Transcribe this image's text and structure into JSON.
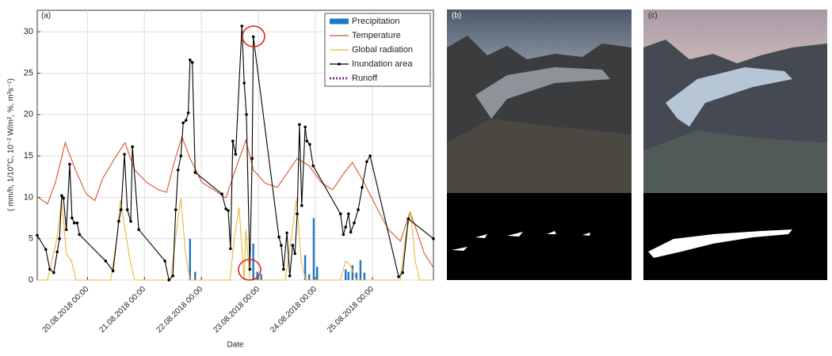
{
  "chart_data": {
    "type": "line",
    "panel_label": "(a)",
    "xlabel": "Date",
    "ylabel": "( mm/h, 1/10°C, 10⁻² W/m², %, m³s⁻¹)",
    "xlim": [
      19.12,
      26.07
    ],
    "ylim": [
      0,
      32.6
    ],
    "xticks": [
      {
        "value": 20,
        "label": "20.08.2018 00:00"
      },
      {
        "value": 21,
        "label": "21.08.2018 00:00"
      },
      {
        "value": 22,
        "label": "22.08.2018 00:00"
      },
      {
        "value": 23,
        "label": "23.08.2018 00:00"
      },
      {
        "value": 24,
        "label": "24.08.2018 00:00"
      },
      {
        "value": 25,
        "label": "25.08.2018 00:00"
      }
    ],
    "yticks": [
      0,
      5,
      10,
      15,
      20,
      25,
      30
    ],
    "grid": true,
    "legend": "upper right",
    "series": [
      {
        "name": "Precipitation",
        "color": "#1f77c8",
        "style": "bar",
        "x": [
          21.8,
          21.89,
          22.91,
          22.98,
          23.05,
          23.82,
          23.89,
          23.97,
          24.03,
          24.53,
          24.58,
          24.65,
          24.72,
          24.79,
          24.86
        ],
        "values": [
          5.0,
          1.0,
          4.4,
          1.0,
          0.7,
          3.0,
          0.7,
          7.5,
          1.6,
          1.3,
          1.0,
          1.8,
          0.9,
          2.4,
          0.9
        ]
      },
      {
        "name": "Temperature",
        "color": "#d9542b",
        "style": "line",
        "x": [
          19.12,
          19.3,
          19.44,
          19.61,
          19.79,
          19.98,
          20.13,
          20.27,
          20.48,
          20.66,
          20.83,
          21.04,
          21.25,
          21.39,
          21.52,
          21.66,
          21.8,
          22.01,
          22.22,
          22.43,
          22.57,
          22.78,
          22.91,
          23.12,
          23.33,
          23.54,
          23.68,
          23.89,
          24.1,
          24.3,
          24.51,
          24.65,
          24.86,
          25.07,
          25.28,
          25.49,
          25.66,
          25.77,
          25.91,
          26.07
        ],
        "values": [
          10.1,
          9.2,
          11.8,
          16.6,
          13.3,
          10.4,
          9.6,
          12.3,
          14.7,
          16.6,
          13.3,
          11.8,
          10.9,
          10.6,
          14.2,
          17.3,
          14.7,
          11.8,
          10.9,
          9.9,
          12.8,
          16.9,
          13.3,
          11.7,
          11.2,
          13.3,
          14.7,
          13.8,
          11.8,
          10.9,
          13.0,
          14.2,
          11.7,
          8.8,
          6.1,
          4.7,
          8.2,
          6.1,
          3.2,
          1.5
        ]
      },
      {
        "name": "Global radiation",
        "color": "#e8b83a",
        "style": "line",
        "x": [
          19.12,
          19.3,
          19.47,
          19.55,
          19.63,
          19.72,
          19.8,
          20.41,
          20.52,
          20.58,
          20.66,
          20.75,
          20.83,
          21.46,
          21.55,
          21.64,
          21.72,
          21.8,
          22.5,
          22.58,
          22.66,
          22.75,
          22.78,
          22.85,
          23.47,
          23.58,
          23.67,
          23.75,
          23.83,
          24.44,
          24.53,
          24.61,
          24.72,
          25.49,
          25.58,
          25.67,
          25.75,
          25.83,
          26.07
        ],
        "values": [
          0,
          0,
          5.2,
          9.7,
          3.2,
          2.3,
          0,
          0,
          5.2,
          9.7,
          6.1,
          2.3,
          0,
          0,
          5.2,
          9.9,
          3.2,
          0,
          0,
          5.2,
          8.8,
          0,
          6.1,
          0,
          0,
          5.2,
          9.9,
          2.3,
          0,
          0,
          2.3,
          1.8,
          0,
          0,
          5.2,
          8.2,
          2.3,
          0,
          0
        ]
      },
      {
        "name": "Inundation area",
        "color": "#000000",
        "style": "line-markers",
        "x": [
          19.12,
          19.27,
          19.34,
          19.41,
          19.47,
          19.51,
          19.55,
          19.58,
          19.63,
          19.69,
          19.73,
          19.77,
          19.82,
          19.86,
          20.32,
          20.45,
          20.55,
          20.59,
          20.65,
          20.7,
          20.76,
          20.79,
          20.9,
          21.36,
          21.43,
          21.5,
          21.55,
          21.59,
          21.64,
          21.68,
          21.73,
          21.77,
          21.8,
          21.84,
          21.89,
          22.36,
          22.43,
          22.47,
          22.51,
          22.55,
          22.6,
          22.71,
          22.75,
          22.79,
          22.85,
          22.89,
          22.91,
          23.36,
          23.4,
          23.44,
          23.5,
          23.55,
          23.6,
          23.64,
          23.68,
          23.72,
          23.76,
          23.82,
          23.85,
          23.9,
          23.96,
          24.44,
          24.49,
          24.53,
          24.58,
          24.62,
          24.68,
          24.75,
          24.82,
          24.9,
          24.96,
          25.46,
          25.53,
          25.63,
          26.07
        ],
        "values": [
          5.4,
          3.7,
          1.3,
          0.9,
          3.4,
          5.0,
          10.2,
          9.9,
          6.1,
          14.0,
          7.5,
          6.9,
          6.9,
          5.5,
          2.3,
          1.1,
          7.1,
          8.5,
          15.2,
          8.5,
          7.1,
          16.1,
          6.1,
          2.3,
          0,
          0.5,
          8.5,
          13.3,
          15.0,
          19.0,
          19.3,
          20.2,
          26.6,
          26.3,
          13.0,
          10.4,
          8.6,
          8.4,
          3.8,
          16.8,
          15.2,
          30.7,
          23.8,
          20.0,
          1.3,
          14.7,
          29.4,
          5.2,
          4.2,
          1.3,
          5.7,
          0.5,
          4.2,
          3.2,
          8.0,
          18.8,
          9.0,
          18.5,
          16.8,
          16.4,
          13.8,
          8.0,
          5.5,
          6.4,
          8.0,
          5.8,
          6.9,
          8.5,
          11.2,
          14.3,
          15.0,
          0.4,
          0.9,
          7.4,
          5.0
        ]
      },
      {
        "name": "Runoff",
        "color": "#7e2f8e",
        "style": "dotted",
        "x": [],
        "values": []
      }
    ]
  },
  "photos": {
    "b": "(b)",
    "c": "(c)"
  }
}
